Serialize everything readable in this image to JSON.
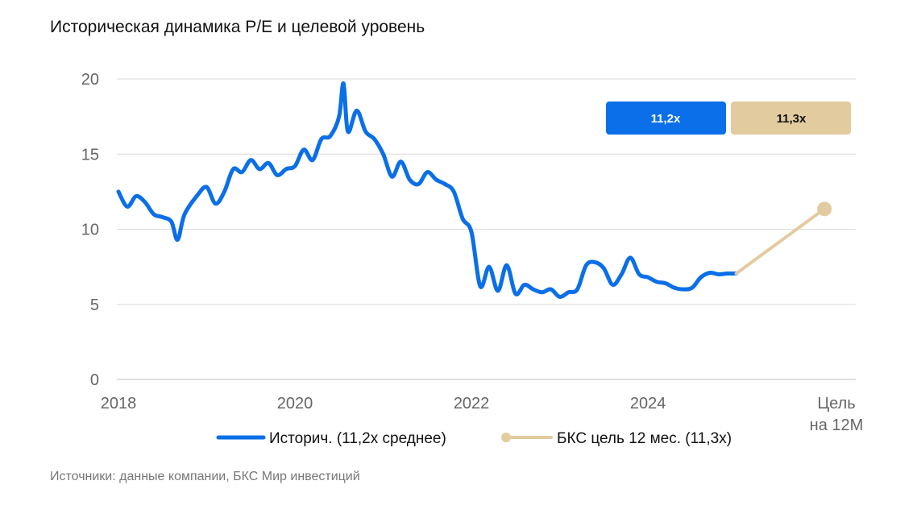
{
  "title": "Историческая динамика P/E и целевой уровень",
  "source": "Источники: данные компании, БКС Мир инвестиций",
  "colors": {
    "historical": "#0a6fe8",
    "target": "#e2cb9f",
    "grid": "#d9d9d9",
    "axis_text": "#666666"
  },
  "badges": {
    "historical": "11,2x",
    "target": "11,3x"
  },
  "legend": {
    "historical": "Историч. (11,2x среднее)",
    "target": "БКС цель 12 мес. (11,3x)"
  },
  "chart_data": {
    "type": "line",
    "title": "Историческая динамика P/E и целевой уровень",
    "ylim": [
      0,
      20
    ],
    "yticks": [
      0,
      5,
      10,
      15,
      20
    ],
    "xlim": [
      2018,
      2026.3
    ],
    "xticks": [
      {
        "x": 2018,
        "label": "2018"
      },
      {
        "x": 2020,
        "label": "2020"
      },
      {
        "x": 2022,
        "label": "2022"
      },
      {
        "x": 2024,
        "label": "2024"
      }
    ],
    "target_label": [
      "Цель",
      "на 12М"
    ],
    "grid": true,
    "legend_position": "bottom",
    "series": [
      {
        "name": "Историч. (11,2x среднее)",
        "x": [
          2018.0,
          2018.1,
          2018.2,
          2018.3,
          2018.4,
          2018.5,
          2018.6,
          2018.67,
          2018.75,
          2018.9,
          2019.0,
          2019.1,
          2019.2,
          2019.3,
          2019.4,
          2019.5,
          2019.6,
          2019.7,
          2019.8,
          2019.9,
          2020.0,
          2020.1,
          2020.2,
          2020.3,
          2020.4,
          2020.5,
          2020.55,
          2020.6,
          2020.7,
          2020.8,
          2020.9,
          2021.0,
          2021.1,
          2021.2,
          2021.3,
          2021.4,
          2021.5,
          2021.6,
          2021.7,
          2021.8,
          2021.9,
          2022.0,
          2022.1,
          2022.2,
          2022.3,
          2022.4,
          2022.5,
          2022.6,
          2022.7,
          2022.8,
          2022.9,
          2023.0,
          2023.1,
          2023.2,
          2023.3,
          2023.4,
          2023.5,
          2023.6,
          2023.7,
          2023.8,
          2023.9,
          2024.0,
          2024.1,
          2024.2,
          2024.3,
          2024.4,
          2024.5,
          2024.6,
          2024.7,
          2024.8,
          2024.9,
          2025.0
        ],
        "values": [
          12.5,
          11.5,
          12.2,
          11.8,
          11.0,
          10.8,
          10.5,
          9.3,
          11.0,
          12.3,
          12.8,
          11.7,
          12.5,
          14.0,
          13.8,
          14.6,
          14.0,
          14.4,
          13.6,
          14.0,
          14.2,
          15.3,
          14.6,
          16.0,
          16.2,
          17.5,
          19.7,
          16.5,
          17.9,
          16.5,
          16.0,
          15.0,
          13.5,
          14.5,
          13.3,
          13.0,
          13.8,
          13.3,
          13.0,
          12.5,
          10.7,
          9.8,
          6.2,
          7.5,
          5.9,
          7.6,
          5.7,
          6.3,
          6.0,
          5.8,
          6.0,
          5.5,
          5.8,
          6.0,
          7.6,
          7.8,
          7.4,
          6.3,
          7.0,
          8.1,
          7.0,
          6.8,
          6.5,
          6.4,
          6.1,
          6.0,
          6.1,
          6.8,
          7.1,
          7.0,
          7.05,
          7.05
        ]
      },
      {
        "name": "БКС цель 12 мес. (11,3x)",
        "x": [
          2025.0,
          2026.0
        ],
        "values": [
          7.05,
          11.35
        ]
      }
    ]
  }
}
